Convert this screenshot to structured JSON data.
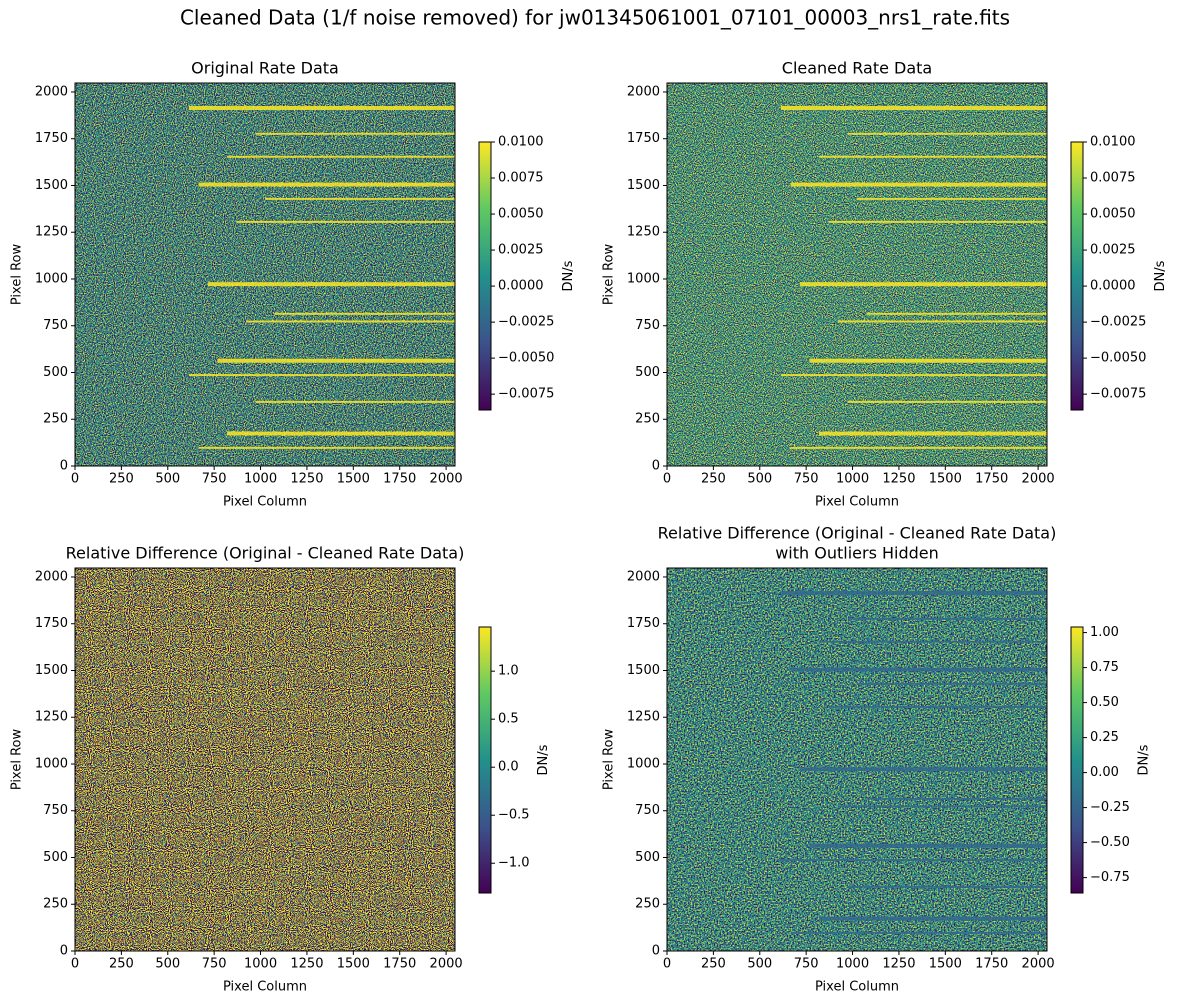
{
  "chart_data": [
    {
      "type": "image",
      "suptitle": "Cleaned Data (1/f noise removed) for jw01345061001_07101_00003_nrs1_rate.fits",
      "title": [
        "Original Rate Data"
      ],
      "xlabel": "Pixel Column",
      "ylabel": "Pixel Row",
      "xlim": [
        0,
        2048
      ],
      "ylim": [
        0,
        2048
      ],
      "xticks": [
        0,
        250,
        500,
        750,
        1000,
        1250,
        1500,
        1750,
        2000
      ],
      "yticks": [
        0,
        250,
        500,
        750,
        1000,
        1250,
        1500,
        1750,
        2000
      ],
      "colormap": "viridis",
      "colorbar": {
        "label": "DN/s",
        "lim": [
          -0.0086,
          0.01
        ],
        "ticks": [
          {
            "value": 0.01,
            "label": "0.0100"
          },
          0.0075,
          {
            "value": 0.005,
            "label": "0.0050"
          },
          0.0025,
          {
            "value": 0,
            "label": "0.0000"
          },
          {
            "value": -0.0025,
            "label": "−0.0025"
          },
          {
            "value": -0.005,
            "label": "−0.0050"
          },
          {
            "value": -0.0075,
            "label": "−0.0075"
          }
        ]
      }
    },
    {
      "type": "image",
      "title": [
        "Cleaned Rate Data"
      ],
      "xlabel": "Pixel Column",
      "ylabel": "Pixel Row",
      "xlim": [
        0,
        2048
      ],
      "ylim": [
        0,
        2048
      ],
      "xticks": [
        0,
        250,
        500,
        750,
        1000,
        1250,
        1500,
        1750,
        2000
      ],
      "yticks": [
        0,
        250,
        500,
        750,
        1000,
        1250,
        1500,
        1750,
        2000
      ],
      "colormap": "viridis",
      "colorbar": {
        "label": "DN/s",
        "lim": [
          -0.0086,
          0.01
        ],
        "ticks": [
          {
            "value": 0.01,
            "label": "0.0100"
          },
          0.0075,
          {
            "value": 0.005,
            "label": "0.0050"
          },
          0.0025,
          {
            "value": 0,
            "label": "0.0000"
          },
          {
            "value": -0.0025,
            "label": "−0.0025"
          },
          {
            "value": -0.005,
            "label": "−0.0050"
          },
          {
            "value": -0.0075,
            "label": "−0.0075"
          }
        ]
      }
    },
    {
      "type": "image",
      "title": [
        "Relative Difference (Original - Cleaned Rate Data)"
      ],
      "xlabel": "Pixel Column",
      "ylabel": "Pixel Row",
      "xlim": [
        0,
        2048
      ],
      "ylim": [
        0,
        2048
      ],
      "xticks": [
        0,
        250,
        500,
        750,
        1000,
        1250,
        1500,
        1750,
        2000
      ],
      "yticks": [
        0,
        250,
        500,
        750,
        1000,
        1250,
        1500,
        1750,
        2000
      ],
      "colormap": "viridis",
      "colorbar": {
        "label": "DN/s",
        "lim": [
          -1.31,
          1.46
        ],
        "ticks": [
          {
            "value": 1,
            "label": "1.0"
          },
          0.5,
          {
            "value": 0,
            "label": "0.0"
          },
          {
            "value": -0.5,
            "label": "−0.5"
          },
          {
            "value": -1,
            "label": "−1.0"
          }
        ]
      }
    },
    {
      "type": "image",
      "title": [
        "Relative Difference (Original - Cleaned Rate Data)",
        "with Outliers Hidden"
      ],
      "xlabel": "Pixel Column",
      "ylabel": "Pixel Row",
      "xlim": [
        0,
        2048
      ],
      "ylim": [
        0,
        2048
      ],
      "xticks": [
        0,
        250,
        500,
        750,
        1000,
        1250,
        1500,
        1750,
        2000
      ],
      "yticks": [
        0,
        250,
        500,
        750,
        1000,
        1250,
        1500,
        1750,
        2000
      ],
      "colormap": "viridis",
      "colorbar": {
        "label": "DN/s",
        "lim": [
          -0.86,
          1.04
        ],
        "ticks": [
          {
            "value": 1,
            "label": "1.00"
          },
          0.75,
          {
            "value": 0.5,
            "label": "0.50"
          },
          0.25,
          {
            "value": 0,
            "label": "0.00"
          },
          {
            "value": -0.25,
            "label": "−0.25"
          },
          {
            "value": -0.5,
            "label": "−0.50"
          },
          {
            "value": -0.75,
            "label": "−0.75"
          }
        ]
      }
    }
  ]
}
